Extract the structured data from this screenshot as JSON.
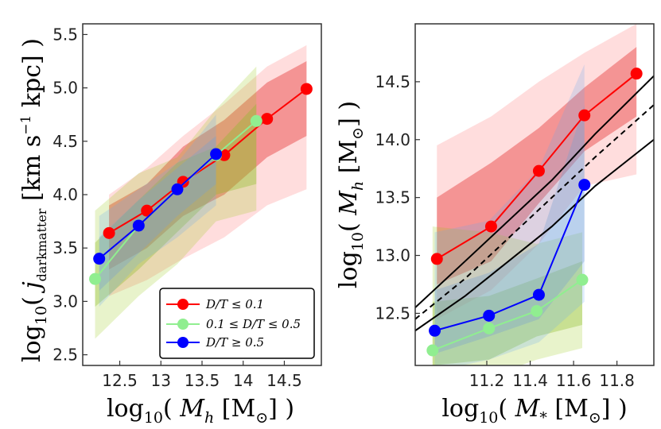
{
  "chart_data": [
    {
      "type": "line",
      "xlabel": "log₁₀( M_h [M☉] )",
      "ylabel": "log₁₀( j_darkmatter [km s⁻¹ kpc] )",
      "xlim": [
        12.05,
        14.95
      ],
      "ylim": [
        2.4,
        5.6
      ],
      "xticks": [
        12.5,
        13.0,
        13.5,
        14.0,
        14.5
      ],
      "xtick_labels": [
        "12.5",
        "13",
        "13.5",
        "14",
        "14.5"
      ],
      "yticks": [
        2.5,
        3.0,
        3.5,
        4.0,
        4.5,
        5.0,
        5.5
      ],
      "ytick_labels": [
        "2.5",
        "3.0",
        "3.5",
        "4.0",
        "4.5",
        "5.0",
        "5.5"
      ],
      "legend_position": "lower-right",
      "series": [
        {
          "name": "D/T ≤ 0.1",
          "color": "#ff0000",
          "x": [
            12.37,
            12.83,
            13.27,
            13.77,
            14.29,
            14.77
          ],
          "y": [
            3.64,
            3.85,
            4.12,
            4.37,
            4.71,
            4.99
          ],
          "band_outer_low": [
            3.05,
            3.2,
            3.4,
            3.6,
            3.9,
            4.05
          ],
          "band_outer_high": [
            4.0,
            4.25,
            4.55,
            4.85,
            5.2,
            5.4
          ],
          "band_inner_low": [
            3.3,
            3.5,
            3.8,
            4.0,
            4.35,
            4.55
          ],
          "band_inner_high": [
            3.9,
            4.1,
            4.45,
            4.7,
            5.05,
            5.25
          ]
        },
        {
          "name": "0.1 ≤ D/T ≤ 0.5",
          "color": "#90ee90",
          "x": [
            12.2,
            12.73,
            13.2,
            13.67,
            14.16
          ],
          "y": [
            3.21,
            3.71,
            4.05,
            4.37,
            4.69
          ],
          "band_outer_low": [
            2.65,
            3.05,
            3.35,
            3.75,
            3.85
          ],
          "band_outer_high": [
            3.85,
            4.2,
            4.35,
            4.8,
            5.2
          ],
          "band_inner_low": [
            2.95,
            3.3,
            3.65,
            4.0,
            4.1
          ],
          "band_inner_high": [
            3.55,
            3.95,
            4.3,
            4.45,
            4.85
          ]
        },
        {
          "name": "D/T ≥ 0.5",
          "color": "#0000ff",
          "x": [
            12.25,
            12.73,
            13.2,
            13.67
          ],
          "y": [
            3.4,
            3.71,
            4.05,
            4.38
          ],
          "band_outer_low": [
            2.95,
            3.35,
            3.6,
            3.9
          ],
          "band_outer_high": [
            3.8,
            4.05,
            4.3,
            4.75
          ],
          "band_inner_low": [
            3.1,
            3.45,
            3.8,
            4.1
          ],
          "band_inner_high": [
            3.6,
            3.95,
            4.25,
            4.55
          ]
        }
      ]
    },
    {
      "type": "line",
      "xlabel": "log₁₀( M_* [M☉] )",
      "ylabel": "log₁₀( M_h [M☉] )",
      "xlim": [
        10.87,
        11.97
      ],
      "ylim": [
        12.05,
        15.0
      ],
      "xticks": [
        11.2,
        11.4,
        11.6,
        11.8
      ],
      "xtick_labels": [
        "11.2",
        "11.4",
        "11.6",
        "11.8"
      ],
      "yticks": [
        12.5,
        13.0,
        13.5,
        14.0,
        14.5
      ],
      "ytick_labels": [
        "12.5",
        "13.0",
        "13.5",
        "14.0",
        "14.5"
      ],
      "series": [
        {
          "name": "D/T ≤ 0.1",
          "color": "#ff0000",
          "x": [
            10.97,
            11.22,
            11.44,
            11.65,
            11.89
          ],
          "y": [
            12.97,
            13.25,
            13.73,
            14.21,
            14.57
          ],
          "band_outer_low": [
            12.45,
            12.7,
            13.1,
            13.6,
            13.7
          ],
          "band_outer_high": [
            13.95,
            14.2,
            14.5,
            14.75,
            15.0
          ],
          "band_inner_low": [
            12.75,
            12.95,
            13.45,
            13.9,
            14.2
          ],
          "band_inner_high": [
            13.5,
            13.8,
            14.1,
            14.45,
            14.8
          ]
        },
        {
          "name": "0.1 ≤ D/T ≤ 0.5",
          "color": "#90ee90",
          "x": [
            10.95,
            11.21,
            11.43,
            11.64
          ],
          "y": [
            12.18,
            12.37,
            12.52,
            12.79
          ],
          "band_outer_low": [
            11.9,
            11.95,
            12.1,
            12.2
          ],
          "band_outer_high": [
            13.25,
            13.2,
            13.1,
            13.2
          ],
          "band_inner_low": [
            12.05,
            12.1,
            12.3,
            12.4
          ],
          "band_inner_high": [
            12.6,
            12.65,
            12.8,
            12.95
          ]
        },
        {
          "name": "D/T ≥ 0.5",
          "color": "#0000ff",
          "x": [
            10.96,
            11.21,
            11.44,
            11.65
          ],
          "y": [
            12.35,
            12.48,
            12.66,
            13.61
          ],
          "band_outer_low": [
            12.0,
            12.1,
            12.25,
            12.6
          ],
          "band_outer_high": [
            13.2,
            13.3,
            13.75,
            14.65
          ],
          "band_inner_low": [
            12.15,
            12.3,
            12.45,
            12.95
          ],
          "band_inner_high": [
            12.7,
            12.85,
            13.1,
            14.3
          ]
        }
      ],
      "reference_lines": [
        {
          "style": "solid",
          "x": [
            10.87,
            11.1,
            11.3,
            11.5,
            11.7,
            11.97
          ],
          "y": [
            12.55,
            12.95,
            13.3,
            13.65,
            14.05,
            14.55
          ]
        },
        {
          "style": "dashed",
          "x": [
            10.87,
            11.1,
            11.3,
            11.5,
            11.7,
            11.97
          ],
          "y": [
            12.45,
            12.8,
            13.15,
            13.5,
            13.85,
            14.3
          ]
        },
        {
          "style": "solid",
          "x": [
            10.87,
            11.1,
            11.3,
            11.5,
            11.7,
            11.97
          ],
          "y": [
            12.35,
            12.65,
            12.95,
            13.25,
            13.6,
            14.0
          ]
        }
      ]
    }
  ]
}
